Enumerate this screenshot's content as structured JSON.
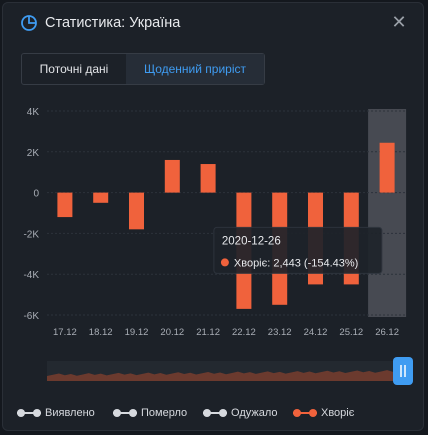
{
  "header": {
    "title": "Статистика: Україна",
    "close_icon": "close-icon",
    "chart_icon": "pie-chart-icon"
  },
  "tabs": [
    {
      "label": "Поточні дані",
      "active": false
    },
    {
      "label": "Щоденний приріст",
      "active": true
    }
  ],
  "colors": {
    "bar": "#f0623c",
    "highlight": "#6b6e74",
    "accent": "#3f9cf2",
    "background": "#1c2128"
  },
  "chart_data": {
    "type": "bar",
    "title": "",
    "xlabel": "",
    "ylabel": "",
    "categories": [
      "17.12",
      "18.12",
      "19.12",
      "20.12",
      "21.12",
      "22.12",
      "23.12",
      "24.12",
      "25.12",
      "26.12"
    ],
    "series": [
      {
        "name": "Хворіє",
        "values": [
          -1200,
          -500,
          -1800,
          1600,
          1400,
          -5700,
          -5500,
          -4500,
          -4500,
          2443
        ]
      }
    ],
    "ylim": [
      -6000,
      4000
    ],
    "yticks": [
      "4K",
      "2K",
      "0",
      "-2K",
      "-4K",
      "-6K"
    ],
    "ytick_values": [
      4000,
      2000,
      0,
      -2000,
      -4000,
      -6000
    ],
    "grid": "horizontal",
    "highlighted_category": "26.12",
    "tooltip": {
      "date": "2020-12-26",
      "label": "Хворіє: 2,443 (-154.43%)"
    }
  },
  "legend": [
    {
      "label": "Виявлено",
      "color": "#d6d9de"
    },
    {
      "label": "Померло",
      "color": "#d6d9de"
    },
    {
      "label": "Одужало",
      "color": "#d6d9de"
    },
    {
      "label": "Хворіє",
      "color": "#f0623c"
    }
  ]
}
